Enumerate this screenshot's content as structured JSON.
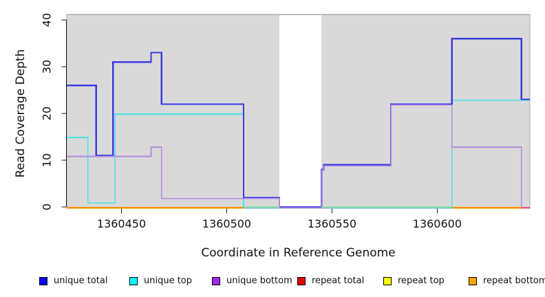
{
  "chart_data": {
    "type": "line",
    "subtype": "step-after",
    "title": "",
    "xlabel": "Coordinate in Reference Genome",
    "ylabel": "Read Coverage Depth",
    "xlim": [
      1360424,
      1360644
    ],
    "ylim": [
      0,
      41
    ],
    "x_ticks": [
      1360450,
      1360500,
      1360550,
      1360600
    ],
    "y_ticks": [
      0,
      10,
      20,
      30,
      40
    ],
    "grid": false,
    "plot_background": "#d9d9d9",
    "plot_border": "#a9a9a9",
    "masked_region": {
      "from": 1360525,
      "to": 1360545,
      "fill": "#ffffff"
    },
    "series": [
      {
        "name": "unique total",
        "color": "#0000ff",
        "line_color": "#3b3be4",
        "points": [
          [
            1360424,
            26
          ],
          [
            1360438,
            11
          ],
          [
            1360446,
            31
          ],
          [
            1360464,
            33
          ],
          [
            1360469,
            22
          ],
          [
            1360508,
            2
          ],
          [
            1360525,
            0
          ],
          [
            1360545,
            8
          ],
          [
            1360546,
            9
          ],
          [
            1360578,
            22
          ],
          [
            1360607,
            36
          ],
          [
            1360640,
            23
          ],
          [
            1360644,
            23
          ]
        ]
      },
      {
        "name": "unique top",
        "color": "#00ffff",
        "line_color": "#49e2e9",
        "points": [
          [
            1360424,
            15
          ],
          [
            1360434,
            1
          ],
          [
            1360447,
            20
          ],
          [
            1360508,
            0
          ],
          [
            1360607,
            23
          ],
          [
            1360644,
            23
          ]
        ]
      },
      {
        "name": "unique bottom",
        "color": "#a228ec",
        "line_color": "#b389e4",
        "points": [
          [
            1360424,
            11
          ],
          [
            1360464,
            13
          ],
          [
            1360469,
            2
          ],
          [
            1360525,
            0
          ],
          [
            1360545,
            8
          ],
          [
            1360546,
            9
          ],
          [
            1360578,
            22
          ],
          [
            1360607,
            13
          ],
          [
            1360640,
            0
          ],
          [
            1360644,
            0
          ]
        ]
      },
      {
        "name": "repeat total",
        "color": "#e00000",
        "line_color": "#dd1111",
        "points": [
          [
            1360424,
            0
          ],
          [
            1360644,
            0
          ]
        ]
      },
      {
        "name": "repeat top",
        "color": "#ffff00",
        "line_color": "#f2f200",
        "points": [
          [
            1360424,
            0
          ],
          [
            1360644,
            0
          ]
        ]
      },
      {
        "name": "repeat bottom",
        "color": "#ffa200",
        "line_color": "#ff9100",
        "points": [
          [
            1360424,
            0
          ],
          [
            1360644,
            0
          ]
        ]
      }
    ],
    "baseline_overlays": [
      {
        "from": 1360424,
        "to": 1360508,
        "color": "#ff9100"
      },
      {
        "from": 1360508,
        "to": 1360525,
        "color": "#8ed38e"
      },
      {
        "from": 1360545,
        "to": 1360607,
        "color": "#8ed38e"
      },
      {
        "from": 1360607,
        "to": 1360640,
        "color": "#ff9100"
      },
      {
        "from": 1360640,
        "to": 1360644,
        "color": "#e85490"
      }
    ],
    "legend": {
      "position": "bottom",
      "items": [
        {
          "label": "unique total",
          "color": "#0000ff"
        },
        {
          "label": "unique top",
          "color": "#00ffff"
        },
        {
          "label": "unique bottom",
          "color": "#a228ec"
        },
        {
          "label": "repeat total",
          "color": "#e00000"
        },
        {
          "label": "repeat top",
          "color": "#ffff00"
        },
        {
          "label": "repeat bottom",
          "color": "#ffa200"
        }
      ]
    }
  }
}
